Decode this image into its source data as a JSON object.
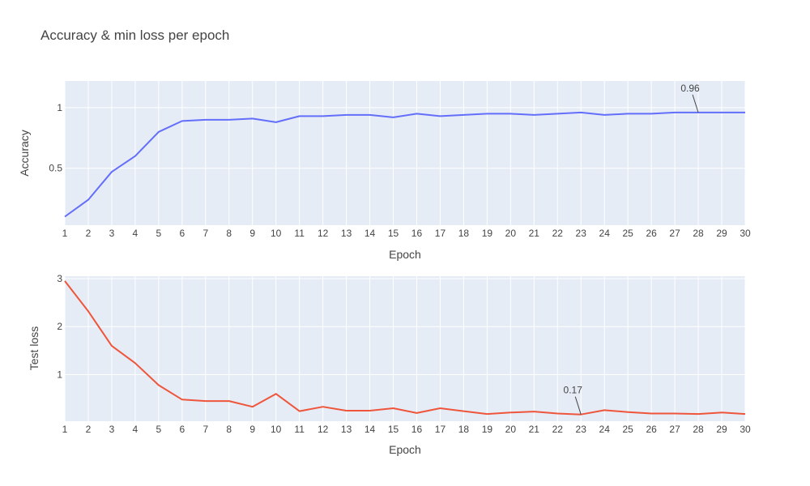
{
  "chart_data": {
    "title": "Accuracy & min loss per epoch",
    "type": "line",
    "colors": {
      "plot_bg": "#e5ecf6",
      "grid": "#ffffff",
      "accuracy": "#636efa",
      "test_loss": "#ef553b",
      "text": "#444444"
    },
    "subplots": [
      {
        "id": "accuracy",
        "type": "line",
        "xlabel": "Epoch",
        "ylabel": "Accuracy",
        "x": [
          1,
          2,
          3,
          4,
          5,
          6,
          7,
          8,
          9,
          10,
          11,
          12,
          13,
          14,
          15,
          16,
          17,
          18,
          19,
          20,
          21,
          22,
          23,
          24,
          25,
          26,
          27,
          28,
          29,
          30
        ],
        "y": [
          0.1,
          0.24,
          0.47,
          0.6,
          0.8,
          0.89,
          0.9,
          0.9,
          0.91,
          0.88,
          0.93,
          0.93,
          0.94,
          0.94,
          0.92,
          0.95,
          0.93,
          0.94,
          0.95,
          0.95,
          0.94,
          0.95,
          0.96,
          0.94,
          0.95,
          0.95,
          0.96,
          0.96,
          0.96,
          0.96
        ],
        "xlim": [
          1,
          30
        ],
        "ylim": [
          0.03,
          1.22
        ],
        "yticks": [
          0.5,
          1
        ],
        "ytick_labels": [
          "0.5",
          "1"
        ],
        "grid": true,
        "annotation": {
          "x": 28,
          "y": 0.96,
          "text": "0.96"
        }
      },
      {
        "id": "test_loss",
        "type": "line",
        "xlabel": "Epoch",
        "ylabel": "Test loss",
        "x": [
          1,
          2,
          3,
          4,
          5,
          6,
          7,
          8,
          9,
          10,
          11,
          12,
          13,
          14,
          15,
          16,
          17,
          18,
          19,
          20,
          21,
          22,
          23,
          24,
          25,
          26,
          27,
          28,
          29,
          30
        ],
        "y": [
          2.95,
          2.32,
          1.6,
          1.24,
          0.78,
          0.48,
          0.45,
          0.45,
          0.33,
          0.6,
          0.24,
          0.33,
          0.25,
          0.25,
          0.3,
          0.2,
          0.3,
          0.24,
          0.18,
          0.21,
          0.23,
          0.19,
          0.17,
          0.26,
          0.22,
          0.19,
          0.19,
          0.18,
          0.21,
          0.18
        ],
        "xlim": [
          1,
          30
        ],
        "ylim": [
          0.03,
          3.05
        ],
        "yticks": [
          1,
          2,
          3
        ],
        "ytick_labels": [
          "1",
          "2",
          "3"
        ],
        "grid": true,
        "annotation": {
          "x": 23,
          "y": 0.17,
          "text": "0.17"
        }
      }
    ]
  }
}
